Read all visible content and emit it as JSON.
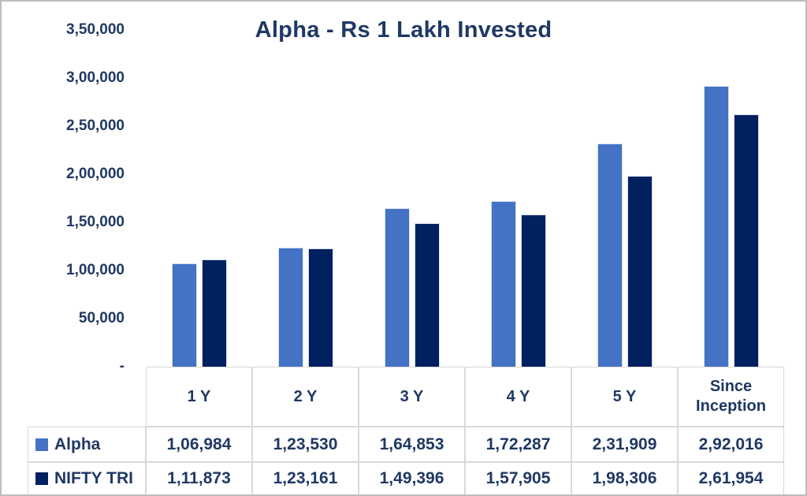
{
  "frame": {
    "background": "#FFFFFF",
    "border_color": "#BDBDBD",
    "text_color": "#1F3864"
  },
  "chart_data": {
    "type": "bar",
    "title": "Alpha - Rs 1 Lakh Invested",
    "categories": [
      "1 Y",
      "2 Y",
      "3 Y",
      "4 Y",
      "5 Y",
      "Since Inception"
    ],
    "series": [
      {
        "name": "Alpha",
        "color": "#4472C4",
        "values": [
          106984,
          123530,
          164853,
          172287,
          231909,
          292016
        ],
        "value_labels": [
          "1,06,984",
          "1,23,530",
          "1,64,853",
          "1,72,287",
          "2,31,909",
          "2,92,016"
        ]
      },
      {
        "name": "NIFTY TRI",
        "color": "#002060",
        "values": [
          111873,
          123161,
          149396,
          157905,
          198306,
          261954
        ],
        "value_labels": [
          "1,11,873",
          "1,23,161",
          "1,49,396",
          "1,57,905",
          "1,98,306",
          "2,61,954"
        ]
      }
    ],
    "ylim": [
      0,
      350000
    ],
    "y_ticks": [
      {
        "value": 350000,
        "label": "3,50,000"
      },
      {
        "value": 300000,
        "label": "3,00,000"
      },
      {
        "value": 250000,
        "label": "2,50,000"
      },
      {
        "value": 200000,
        "label": "2,00,000"
      },
      {
        "value": 150000,
        "label": "1,50,000"
      },
      {
        "value": 100000,
        "label": "1,00,000"
      },
      {
        "value": 50000,
        "label": "50,000"
      },
      {
        "value": 0,
        "label": "-"
      }
    ],
    "grid": false,
    "legend_position": "table-row-headers",
    "xlabel": "",
    "ylabel": ""
  }
}
